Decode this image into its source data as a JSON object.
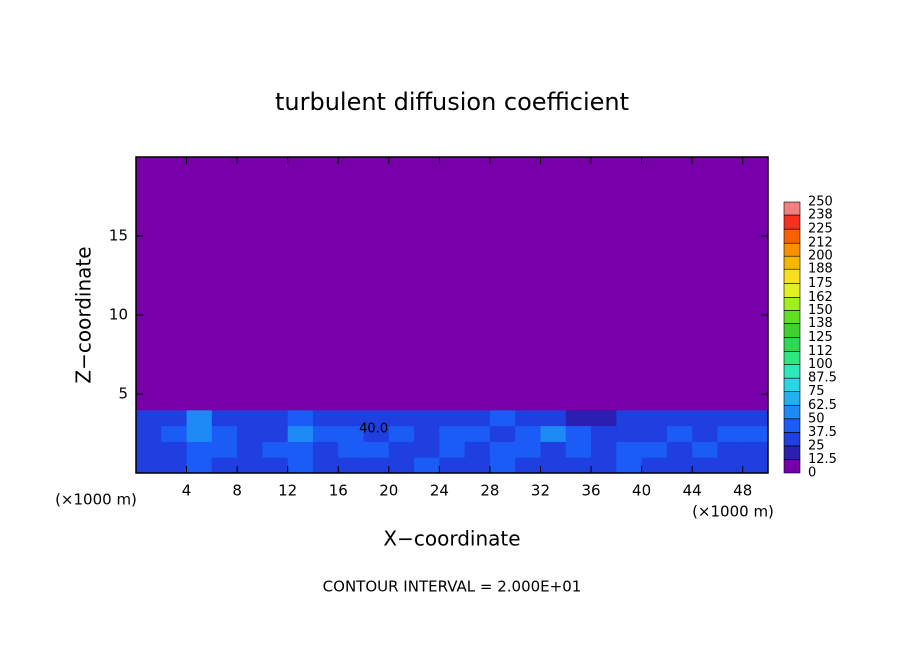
{
  "chart_data": {
    "type": "contour",
    "title": "turbulent diffusion coefficient",
    "x_label": "X−coordinate",
    "y_label": "Z−coordinate",
    "x_unit_labels": [
      "(×1000 m)",
      "(×1000 m)"
    ],
    "annotations": [
      "40.0",
      "CONTOUR INTERVAL = 2.000E+01"
    ],
    "xlim": [
      0,
      50
    ],
    "ylim": [
      0,
      20
    ],
    "xticks": [
      4,
      8,
      12,
      16,
      20,
      24,
      28,
      32,
      36,
      40,
      44,
      48
    ],
    "yticks": [
      5,
      10,
      15
    ],
    "x": [
      1,
      3,
      5,
      7,
      9,
      11,
      13,
      15,
      17,
      19,
      21,
      23,
      25,
      27,
      29,
      31,
      33,
      35,
      37,
      39,
      41,
      43,
      45,
      47,
      49
    ],
    "y": [
      0.5,
      1.5,
      2.5,
      3.5,
      4.5
    ],
    "z": [
      [
        30,
        35,
        40,
        30,
        35,
        32,
        38,
        30,
        36,
        30,
        34,
        38,
        30,
        32,
        40,
        30,
        35,
        30,
        32,
        38,
        36,
        30,
        34,
        30,
        36
      ],
      [
        35,
        30,
        45,
        40,
        30,
        40,
        45,
        35,
        42,
        38,
        30,
        35,
        45,
        30,
        38,
        40,
        35,
        42,
        30,
        40,
        38,
        32,
        40,
        35,
        30
      ],
      [
        30,
        40,
        50,
        45,
        32,
        35,
        50,
        38,
        40,
        35,
        42,
        30,
        40,
        45,
        35,
        38,
        50,
        45,
        35,
        30,
        35,
        40,
        35,
        38,
        40
      ],
      [
        25,
        30,
        55,
        35,
        30,
        30,
        40,
        35,
        30,
        30,
        35,
        28,
        30,
        35,
        40,
        30,
        25,
        15,
        20,
        28,
        30,
        35,
        30,
        30,
        35
      ],
      [
        5,
        5,
        8,
        5,
        5,
        5,
        5,
        5,
        5,
        5,
        5,
        5,
        5,
        5,
        5,
        5,
        5,
        5,
        5,
        5,
        5,
        5,
        5,
        5,
        5
      ]
    ],
    "colorbar": {
      "ticks": [
        0,
        12.5,
        25,
        37.5,
        50,
        62.5,
        75,
        87.5,
        100,
        112,
        125,
        138,
        150,
        162,
        175,
        188,
        200,
        212,
        225,
        238,
        250
      ],
      "colors": [
        "#7800a8",
        "#2a1fb0",
        "#1f3fe0",
        "#1a5cf5",
        "#1d8af5",
        "#22b0f0",
        "#2ad6e6",
        "#2ee8b8",
        "#30e880",
        "#30d850",
        "#40d030",
        "#60e020",
        "#a0f020",
        "#e0f020",
        "#f8e020",
        "#f8b800",
        "#f89000",
        "#f86000",
        "#f83020",
        "#f08080"
      ]
    }
  }
}
